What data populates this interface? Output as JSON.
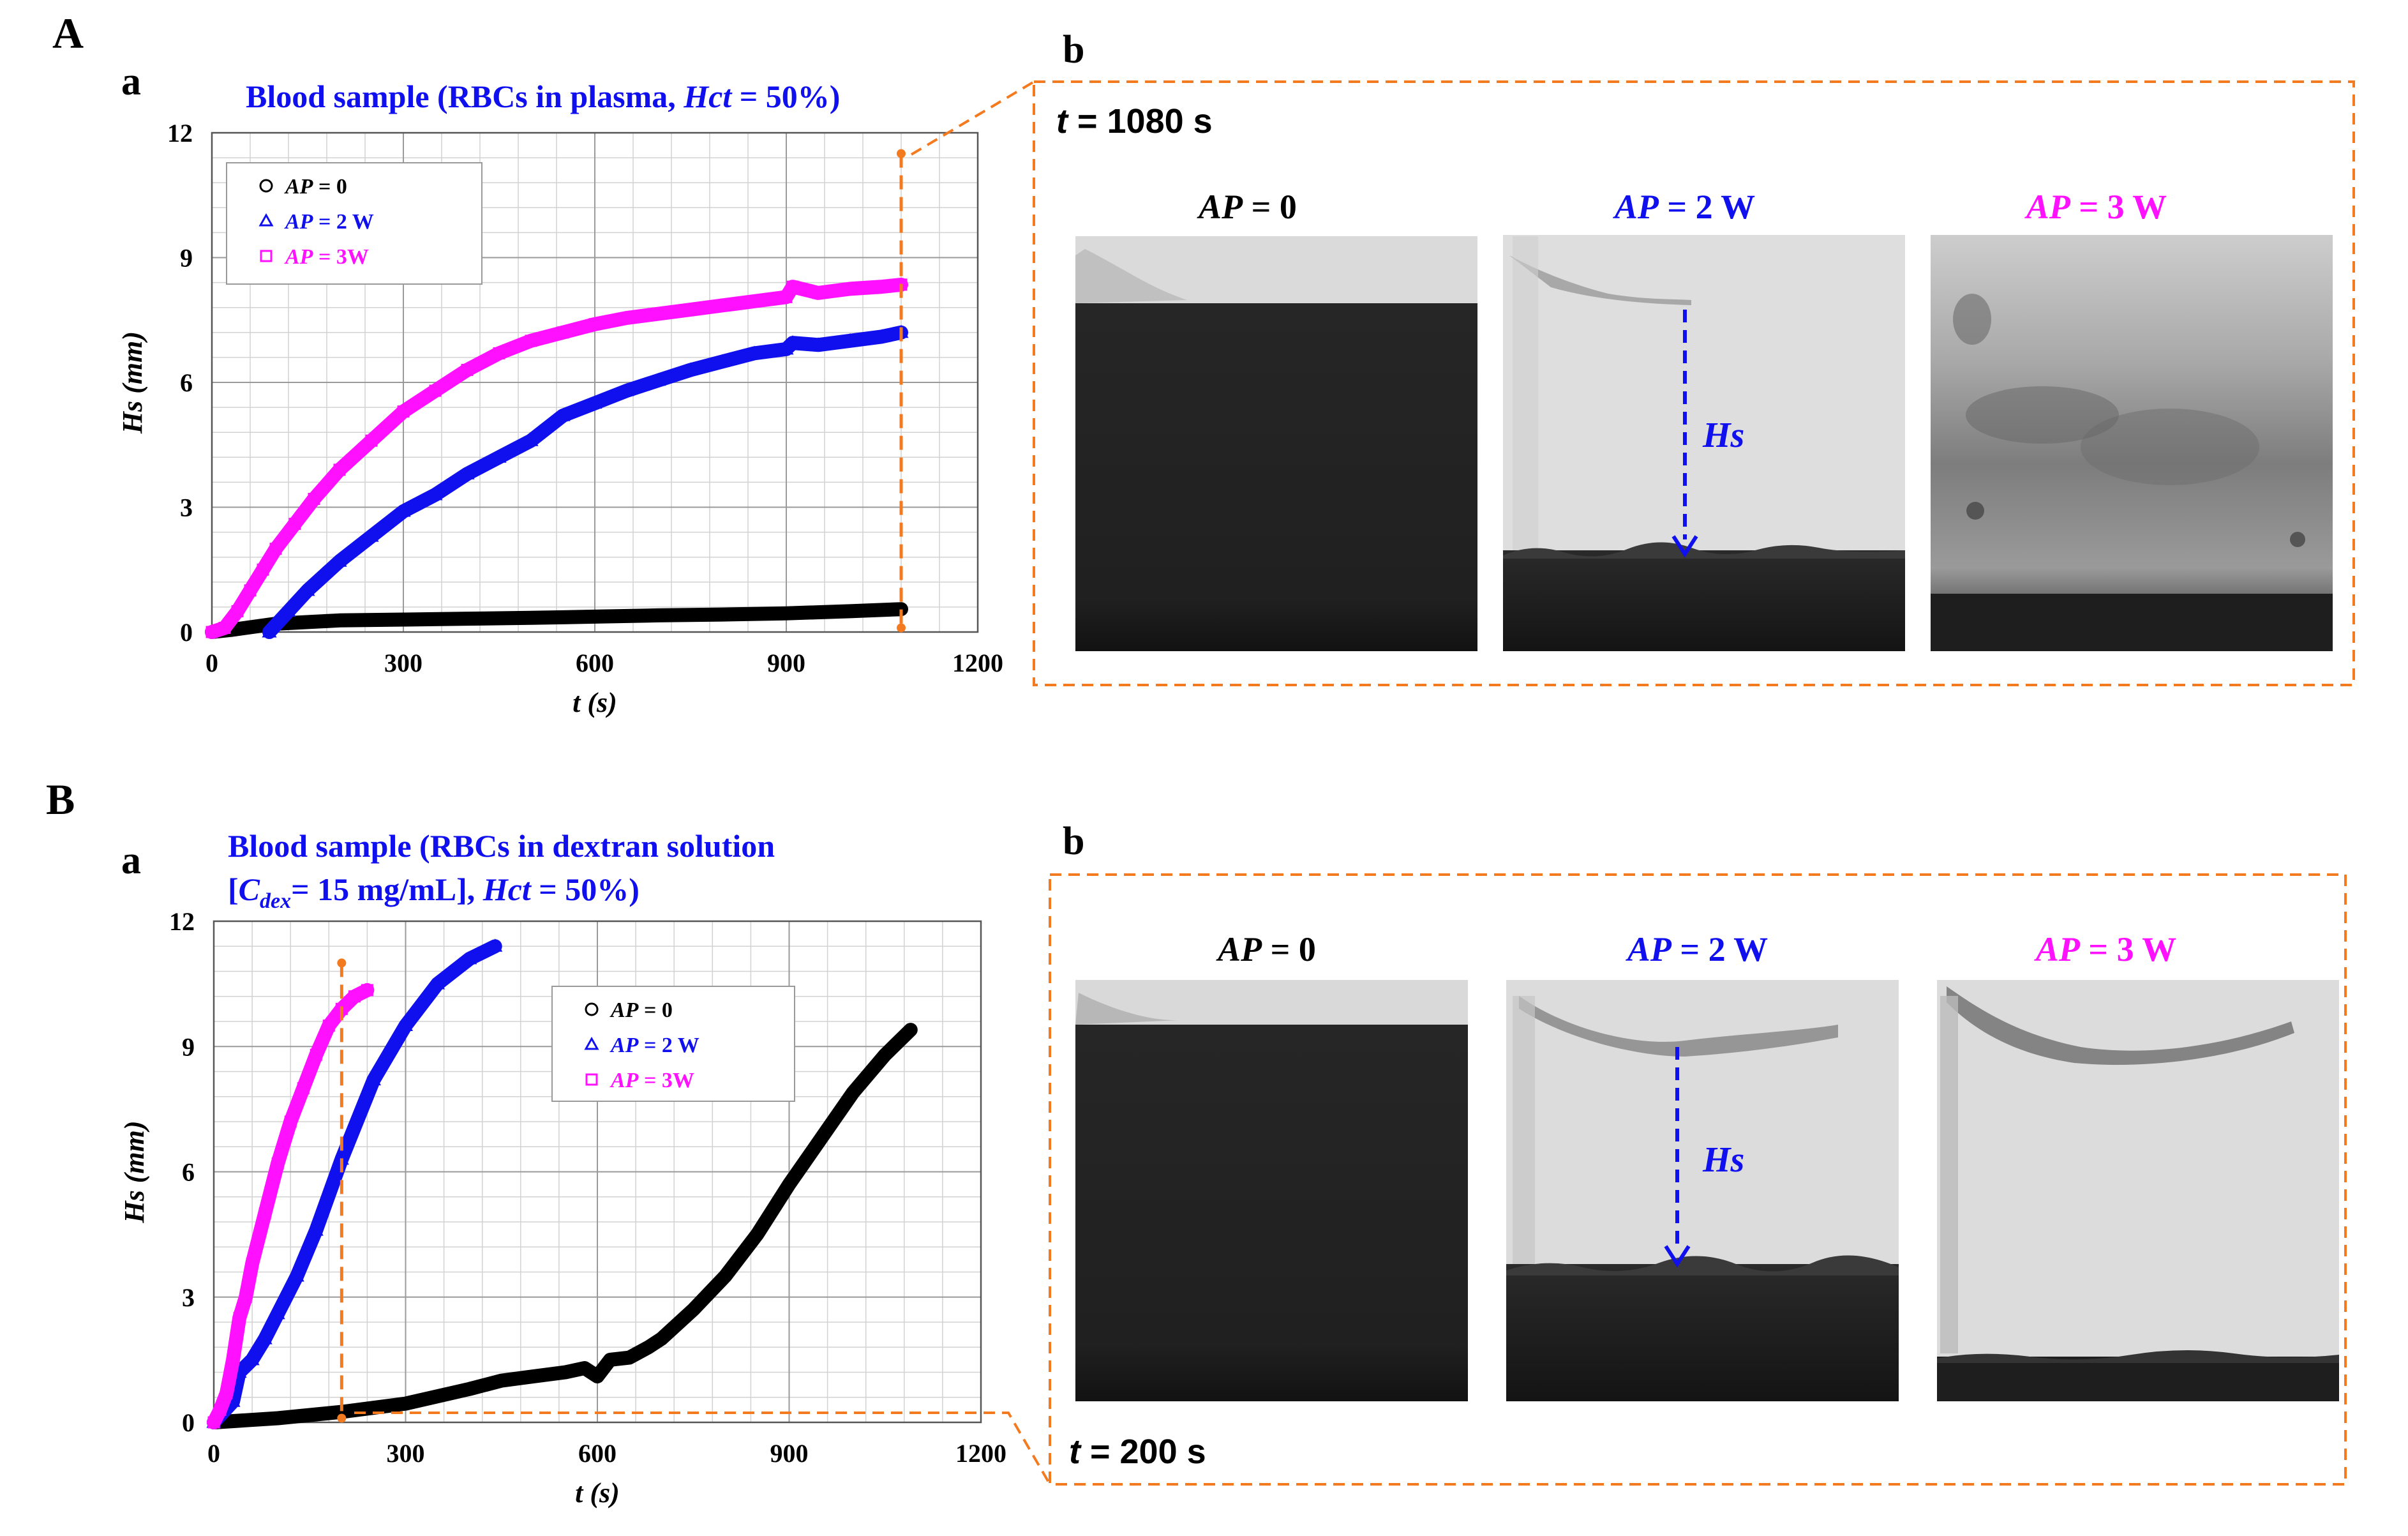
{
  "colors": {
    "black": "#000000",
    "blue": "#1010ee",
    "magenta": "#ff11ff",
    "orange": "#f47a1f",
    "grid_major": "#9a9a9a",
    "grid_minor": "#d2d2d2"
  },
  "panelA": {
    "letter": "A",
    "sub_a": "a",
    "sub_b": "b",
    "chart_title": "Blood sample (RBCs in plasma, Hct = 50%)",
    "time_label": "t = 1080 s",
    "image_labels": [
      "AP = 0",
      "AP = 2 W",
      "AP = 3 W"
    ],
    "hs_label": "Hs"
  },
  "panelB": {
    "letter": "B",
    "sub_a": "a",
    "sub_b": "b",
    "chart_title_line1": "Blood sample (RBCs in dextran solution",
    "chart_title_line2": "[Cdex = 15 mg/mL],  Hct = 50%)",
    "time_label": "t = 200 s",
    "image_labels": [
      "AP = 0",
      "AP = 2 W",
      "AP = 3 W"
    ],
    "hs_label": "Hs"
  },
  "chart_data": [
    {
      "type": "scatter",
      "title": "Blood sample (RBCs in plasma, Hct = 50%)",
      "xlabel": "t (s)",
      "ylabel": "Hs (mm)",
      "xlim": [
        0,
        1200
      ],
      "ylim": [
        0,
        12
      ],
      "xticks": [
        0,
        300,
        600,
        900,
        1200
      ],
      "yticks": [
        0,
        3,
        6,
        9,
        12
      ],
      "grid": true,
      "legend_position": "top-left",
      "series": [
        {
          "name": "AP = 0",
          "marker": "circle",
          "color": "#000000",
          "x": [
            0,
            30,
            100,
            200,
            300,
            400,
            500,
            600,
            700,
            800,
            900,
            1000,
            1080
          ],
          "y": [
            0,
            0.05,
            0.2,
            0.28,
            0.3,
            0.32,
            0.34,
            0.37,
            0.4,
            0.42,
            0.45,
            0.5,
            0.55
          ]
        },
        {
          "name": "AP = 2 W",
          "marker": "triangle",
          "color": "#1010ee",
          "x": [
            90,
            120,
            150,
            200,
            250,
            300,
            350,
            400,
            450,
            500,
            550,
            600,
            650,
            700,
            750,
            800,
            850,
            900,
            910,
            950,
            1000,
            1050,
            1080
          ],
          "y": [
            0,
            0.5,
            1.0,
            1.7,
            2.3,
            2.9,
            3.3,
            3.8,
            4.2,
            4.6,
            5.2,
            5.5,
            5.8,
            6.05,
            6.3,
            6.5,
            6.7,
            6.8,
            6.95,
            6.9,
            7.0,
            7.1,
            7.2
          ]
        },
        {
          "name": "AP = 3W",
          "marker": "square",
          "color": "#ff11ff",
          "x": [
            0,
            20,
            40,
            60,
            80,
            100,
            130,
            160,
            200,
            250,
            300,
            350,
            400,
            450,
            500,
            550,
            600,
            650,
            700,
            750,
            800,
            850,
            900,
            910,
            950,
            1000,
            1050,
            1080
          ],
          "y": [
            0,
            0.1,
            0.5,
            1.0,
            1.5,
            2.0,
            2.6,
            3.2,
            3.9,
            4.6,
            5.3,
            5.8,
            6.3,
            6.7,
            7.0,
            7.2,
            7.4,
            7.55,
            7.65,
            7.75,
            7.85,
            7.95,
            8.05,
            8.3,
            8.15,
            8.25,
            8.3,
            8.35
          ]
        }
      ],
      "annotation": "vertical dashed marker at t = 1080 s"
    },
    {
      "type": "scatter",
      "title": "Blood sample (RBCs in dextran solution [Cdex = 15 mg/mL],  Hct = 50%)",
      "xlabel": "t (s)",
      "ylabel": "Hs (mm)",
      "xlim": [
        0,
        1200
      ],
      "ylim": [
        0,
        12
      ],
      "xticks": [
        0,
        300,
        600,
        900,
        1200
      ],
      "yticks": [
        0,
        3,
        6,
        9,
        12
      ],
      "grid": true,
      "legend_position": "top-right",
      "series": [
        {
          "name": "AP = 0",
          "marker": "circle",
          "color": "#000000",
          "x": [
            0,
            100,
            200,
            300,
            400,
            450,
            500,
            550,
            580,
            600,
            620,
            650,
            680,
            700,
            750,
            800,
            850,
            900,
            950,
            1000,
            1050,
            1090
          ],
          "y": [
            0,
            0.1,
            0.25,
            0.45,
            0.8,
            1.0,
            1.1,
            1.2,
            1.3,
            1.1,
            1.5,
            1.55,
            1.8,
            2.0,
            2.7,
            3.5,
            4.5,
            5.7,
            6.8,
            7.9,
            8.8,
            9.4
          ]
        },
        {
          "name": "AP = 2 W",
          "marker": "triangle",
          "color": "#1010ee",
          "x": [
            0,
            30,
            40,
            60,
            80,
            100,
            130,
            160,
            200,
            250,
            300,
            350,
            400,
            440
          ],
          "y": [
            0,
            0.5,
            1.2,
            1.5,
            2.0,
            2.6,
            3.5,
            4.6,
            6.3,
            8.2,
            9.5,
            10.5,
            11.1,
            11.4
          ]
        },
        {
          "name": "AP = 3W",
          "marker": "square",
          "color": "#ff11ff",
          "x": [
            0,
            10,
            20,
            30,
            40,
            50,
            60,
            80,
            100,
            120,
            140,
            160,
            180,
            200,
            220,
            240
          ],
          "y": [
            0,
            0.3,
            0.7,
            1.5,
            2.5,
            3.0,
            3.8,
            5.0,
            6.2,
            7.2,
            8.0,
            8.8,
            9.5,
            9.9,
            10.2,
            10.35
          ]
        }
      ],
      "annotation": "vertical dashed marker at t = 200 s"
    }
  ]
}
